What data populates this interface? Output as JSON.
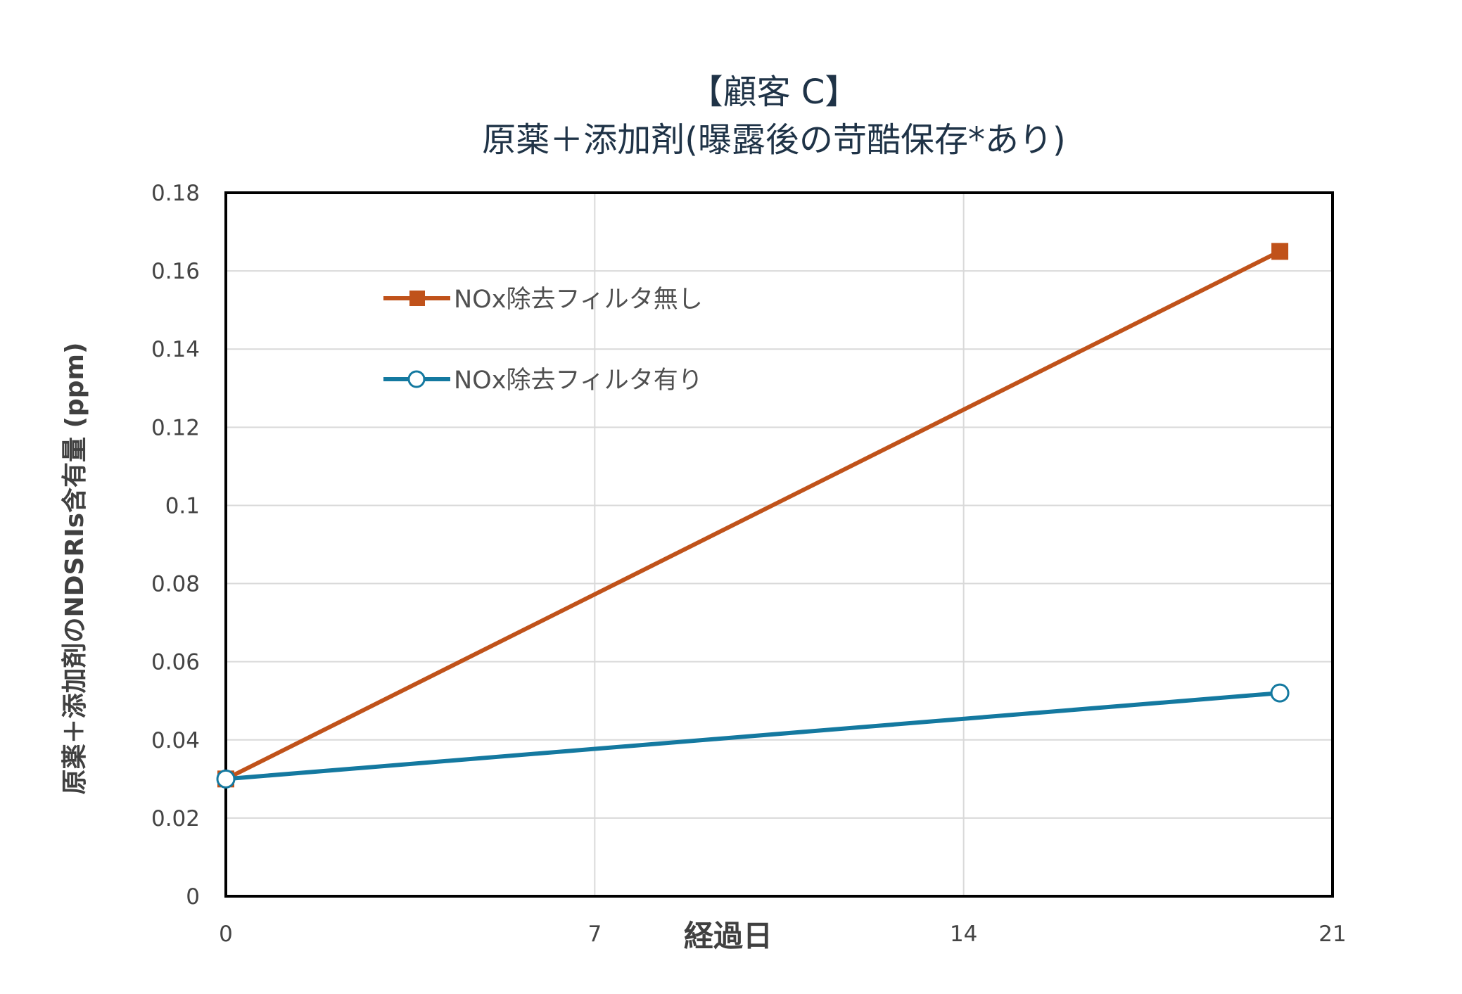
{
  "chart_data": {
    "type": "line",
    "title": "【顧客 C】",
    "subtitle": "原薬＋添加剤(曝露後の苛酷保存*あり)",
    "xlabel": "経過日",
    "ylabel": "原薬＋添加剤のNDSRIs含有量 (ppm)",
    "xlim": [
      0,
      21
    ],
    "ylim": [
      0,
      0.18
    ],
    "x_ticks": [
      "0",
      "7",
      "14",
      "21"
    ],
    "y_ticks": [
      "0",
      "0.02",
      "0.04",
      "0.06",
      "0.08",
      "0.1",
      "0.12",
      "0.14",
      "0.16",
      "0.18"
    ],
    "grid": true,
    "legend_position": "top-left",
    "series": [
      {
        "name": "NOx除去フィルタ無し",
        "x": [
          0,
          20
        ],
        "y": [
          0.03,
          0.165
        ],
        "color": "#c0521a",
        "marker": "square-filled"
      },
      {
        "name": "NOx除去フィルタ有り",
        "x": [
          0,
          20
        ],
        "y": [
          0.03,
          0.052
        ],
        "color": "#1479a0",
        "marker": "circle-open"
      }
    ]
  }
}
